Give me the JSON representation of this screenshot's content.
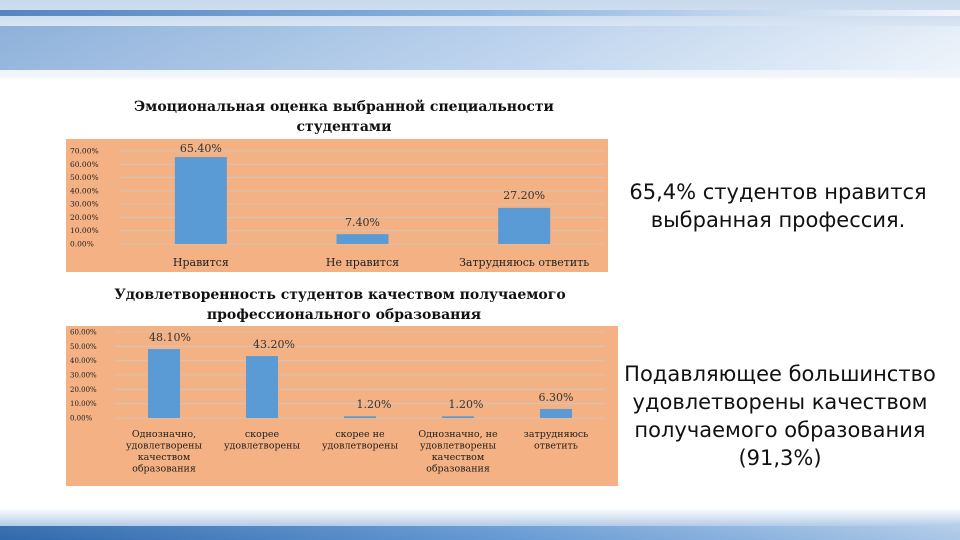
{
  "chart_data": [
    {
      "type": "bar",
      "title": "Эмоциональная оценка выбранной специальности студентами",
      "title_lines": [
        "Эмоциональная оценка выбранной специальности",
        "студентами"
      ],
      "categories": [
        "Нравится",
        "Не нравится",
        "Затрудняюсь ответить"
      ],
      "category_lines": [
        [
          "Нравится"
        ],
        [
          "Не нравится"
        ],
        [
          "Затрудняюсь ответить"
        ]
      ],
      "values": [
        65.4,
        7.4,
        27.2
      ],
      "data_labels": [
        "65.40%",
        "7.40%",
        "27.20%"
      ],
      "y_ticks": [
        "0.00%",
        "10.00%",
        "20.00%",
        "30.00%",
        "40.00%",
        "50.00%",
        "60.00%",
        "70.00%"
      ],
      "ylim": [
        0,
        70
      ],
      "grid": true,
      "legend": "none",
      "bar_color": "#5b9bd5",
      "plot_background": "#f4b183"
    },
    {
      "type": "bar",
      "title": "Удовлетворенность студентов качеством получаемого профессионального образования",
      "title_lines": [
        "Удовлетворенность студентов качеством получаемого",
        "профессионального образования"
      ],
      "categories": [
        "Однозначно, удовлетворены качеством образования",
        "скорее удовлетворены",
        "скорее не удовлетворены",
        "Однозначно, не удовлетворены качеством образования",
        "затрудняюсь ответить"
      ],
      "category_lines": [
        [
          "Однозначно,",
          "удовлетворены",
          "качеством",
          "образования"
        ],
        [
          "скорее",
          "удовлетворены"
        ],
        [
          "скорее не",
          "удовлетворены"
        ],
        [
          "Однозначно, не",
          "удовлетворены",
          "качеством",
          "образования"
        ],
        [
          "затрудняюсь",
          "ответить"
        ]
      ],
      "values": [
        48.1,
        43.2,
        1.2,
        1.2,
        6.3
      ],
      "data_labels": [
        "48.10%",
        "43.20%",
        "1.20%",
        "1.20%",
        "6.30%"
      ],
      "y_ticks": [
        "0.00%",
        "10.00%",
        "20.00%",
        "30.00%",
        "40.00%",
        "50.00%",
        "60.00%"
      ],
      "ylim": [
        0,
        60
      ],
      "grid": true,
      "legend": "none",
      "bar_color": "#5b9bd5",
      "plot_background": "#f4b183"
    }
  ],
  "side_text": {
    "first": "65,4% студентов нравится выбранная профессия.",
    "second": "Подавляющее большинство удовлетворены качеством получаемого образования (91,3%)"
  }
}
